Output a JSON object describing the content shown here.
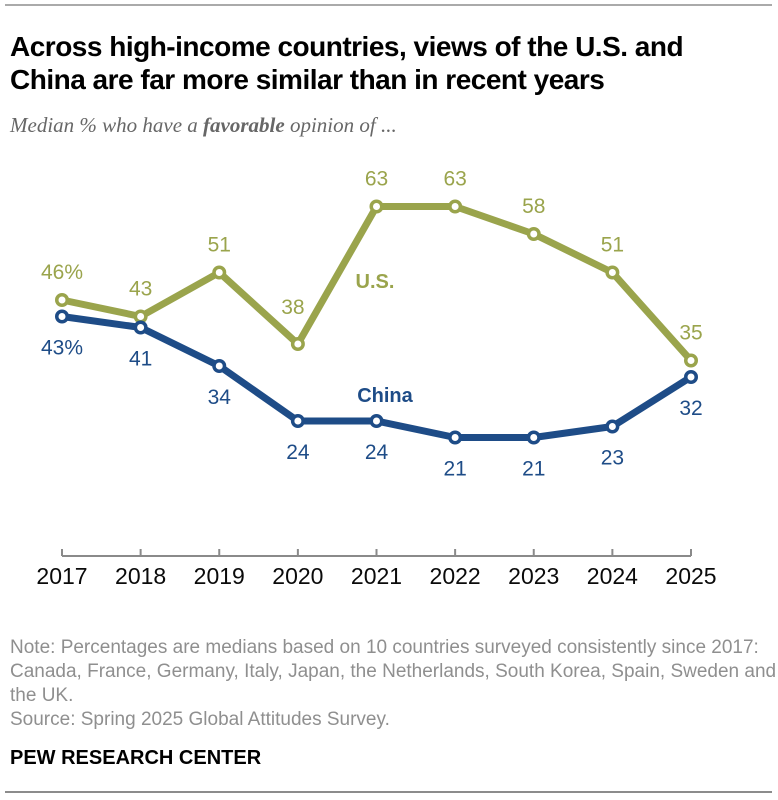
{
  "header": {
    "title_line1": "Across high-income countries, views of the U.S. and",
    "title_line2": "China are far more similar than in recent years",
    "subtitle_prefix": "Median % who have a ",
    "subtitle_emphasis": "favorable",
    "subtitle_suffix": " opinion of ..."
  },
  "chart_data": {
    "type": "line",
    "title": "Across high-income countries, views of the U.S. and China are far more similar than in recent years",
    "subtitle": "Median % who have a favorable opinion of ...",
    "x": [
      2017,
      2018,
      2019,
      2020,
      2021,
      2022,
      2023,
      2024,
      2025
    ],
    "xlabel": "",
    "ylabel": "",
    "ylim": [
      0,
      70
    ],
    "grid": false,
    "legend": "inline-labels",
    "axis_color": "#8a8a8a",
    "series": [
      {
        "name": "U.S.",
        "color": "#9aa44c",
        "values": [
          46,
          43,
          51,
          38,
          63,
          63,
          58,
          51,
          35
        ],
        "point_labels": [
          "46%",
          "43",
          "51",
          "38",
          "63",
          "63",
          "58",
          "51",
          "35"
        ],
        "label_side": "above"
      },
      {
        "name": "China",
        "color": "#1e4c87",
        "values": [
          43,
          41,
          34,
          24,
          24,
          21,
          21,
          23,
          32
        ],
        "point_labels": [
          "43%",
          "41",
          "34",
          "24",
          "24",
          "21",
          "21",
          "23",
          "32"
        ],
        "label_side": "below"
      }
    ]
  },
  "footer": {
    "note_lines": [
      "Note: Percentages are medians based on 10 countries surveyed consistently since 2017:",
      "Canada, France, Germany, Italy, Japan, the Netherlands, South Korea, Spain, Sweden and",
      "the UK."
    ],
    "source": "Source: Spring 2025 Global Attitudes Survey.",
    "brand": "PEW RESEARCH CENTER"
  }
}
